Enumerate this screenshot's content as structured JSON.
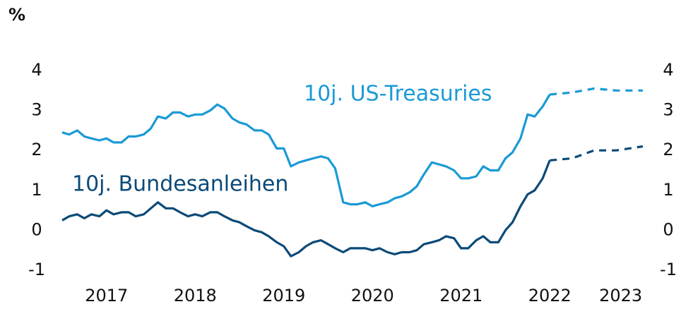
{
  "chart_data": {
    "type": "line",
    "unit_label": "%",
    "x": [
      2017.0,
      2017.08,
      2017.17,
      2017.25,
      2017.33,
      2017.42,
      2017.5,
      2017.58,
      2017.67,
      2017.75,
      2017.83,
      2017.92,
      2018.0,
      2018.08,
      2018.17,
      2018.25,
      2018.33,
      2018.42,
      2018.5,
      2018.58,
      2018.67,
      2018.75,
      2018.83,
      2018.92,
      2019.0,
      2019.08,
      2019.17,
      2019.25,
      2019.33,
      2019.42,
      2019.5,
      2019.58,
      2019.67,
      2019.75,
      2019.83,
      2019.92,
      2020.0,
      2020.08,
      2020.17,
      2020.25,
      2020.33,
      2020.42,
      2020.5,
      2020.58,
      2020.67,
      2020.75,
      2020.83,
      2020.92,
      2021.0,
      2021.08,
      2021.17,
      2021.25,
      2021.33,
      2021.42,
      2021.5,
      2021.58,
      2021.67,
      2021.75,
      2021.83,
      2021.92,
      2022.0,
      2022.08,
      2022.17,
      2022.25,
      2022.33,
      2022.42,
      2022.5
    ],
    "series": [
      {
        "name": "10j. US-Treasuries",
        "color": "#1a9ad6",
        "values": [
          2.45,
          2.4,
          2.5,
          2.35,
          2.3,
          2.25,
          2.3,
          2.2,
          2.2,
          2.35,
          2.35,
          2.4,
          2.55,
          2.85,
          2.8,
          2.95,
          2.95,
          2.85,
          2.9,
          2.9,
          3.0,
          3.15,
          3.05,
          2.8,
          2.7,
          2.65,
          2.5,
          2.5,
          2.4,
          2.05,
          2.05,
          1.6,
          1.7,
          1.75,
          1.8,
          1.85,
          1.8,
          1.55,
          0.7,
          0.65,
          0.65,
          0.7,
          0.6,
          0.65,
          0.7,
          0.8,
          0.85,
          0.95,
          1.1,
          1.4,
          1.7,
          1.65,
          1.6,
          1.5,
          1.3,
          1.3,
          1.35,
          1.6,
          1.5,
          1.5,
          1.8,
          1.95,
          2.3,
          2.9,
          2.85,
          3.1,
          3.4
        ]
      },
      {
        "name": "10j. Bundesanleihen",
        "color": "#0b4a78",
        "values": [
          0.25,
          0.35,
          0.4,
          0.3,
          0.4,
          0.35,
          0.5,
          0.4,
          0.45,
          0.45,
          0.35,
          0.4,
          0.55,
          0.7,
          0.55,
          0.55,
          0.45,
          0.35,
          0.4,
          0.35,
          0.45,
          0.45,
          0.35,
          0.25,
          0.2,
          0.1,
          0.0,
          -0.05,
          -0.15,
          -0.3,
          -0.4,
          -0.65,
          -0.55,
          -0.4,
          -0.3,
          -0.25,
          -0.35,
          -0.45,
          -0.55,
          -0.45,
          -0.45,
          -0.45,
          -0.5,
          -0.45,
          -0.55,
          -0.6,
          -0.55,
          -0.55,
          -0.5,
          -0.35,
          -0.3,
          -0.25,
          -0.15,
          -0.2,
          -0.45,
          -0.45,
          -0.25,
          -0.15,
          -0.3,
          -0.3,
          0.0,
          0.2,
          0.6,
          0.9,
          1.0,
          1.3,
          1.75
        ]
      },
      {
        "color": "#1a9ad6",
        "dashed": true,
        "x": [
          2022.5,
          2022.75,
          2023.0,
          2023.25,
          2023.55
        ],
        "values": [
          3.4,
          3.45,
          3.55,
          3.5,
          3.5
        ]
      },
      {
        "color": "#0b4a78",
        "dashed": true,
        "x": [
          2022.5,
          2022.75,
          2023.0,
          2023.25,
          2023.55
        ],
        "values": [
          1.75,
          1.8,
          2.0,
          2.0,
          2.1
        ]
      }
    ],
    "xlim": [
      2017.0,
      2023.55
    ],
    "xticks": [
      {
        "value": 2017.5,
        "label": "2017"
      },
      {
        "value": 2018.5,
        "label": "2018"
      },
      {
        "value": 2019.5,
        "label": "2019"
      },
      {
        "value": 2020.5,
        "label": "2020"
      },
      {
        "value": 2021.5,
        "label": "2021"
      },
      {
        "value": 2022.5,
        "label": "2022"
      },
      {
        "value": 2023.3,
        "label": "2023"
      }
    ],
    "ylim": [
      -1,
      4
    ],
    "yticks": [
      -1,
      0,
      1,
      2,
      3,
      4
    ],
    "y2lim": [
      -1,
      4
    ],
    "y2ticks": [
      -1,
      0,
      1,
      2,
      3,
      4
    ],
    "grid": false
  }
}
